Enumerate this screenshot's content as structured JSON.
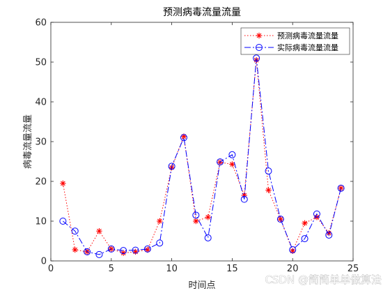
{
  "chart_data": {
    "type": "line",
    "title": "预测病毒流量流量",
    "xlabel": "时间点",
    "ylabel": "病毒流量流量",
    "xlim": [
      0,
      25
    ],
    "ylim": [
      0,
      60
    ],
    "xticks": [
      0,
      5,
      10,
      15,
      20,
      25
    ],
    "yticks": [
      0,
      10,
      20,
      30,
      40,
      50,
      60
    ],
    "grid": false,
    "legend_position": "top-right",
    "x": [
      1,
      2,
      3,
      4,
      5,
      6,
      7,
      8,
      9,
      10,
      11,
      12,
      13,
      14,
      15,
      16,
      17,
      18,
      19,
      20,
      21,
      22,
      23,
      24
    ],
    "series": [
      {
        "name": "预测病毒流量流量",
        "color": "#ff0000",
        "line_style": "dotted",
        "marker": "asterisk",
        "values": [
          19.5,
          2.8,
          2.3,
          7.5,
          3.0,
          2.0,
          2.3,
          2.8,
          10.0,
          23.5,
          31.3,
          10.0,
          11.0,
          24.8,
          24.3,
          16.5,
          50.5,
          17.8,
          10.5,
          2.5,
          9.5,
          11.0,
          7.0,
          18.3
        ]
      },
      {
        "name": "实际病毒流量流量",
        "color": "#0000ff",
        "line_style": "dashdot",
        "marker": "circle",
        "values": [
          10.0,
          7.5,
          2.3,
          1.6,
          3.0,
          2.6,
          2.7,
          3.0,
          4.5,
          23.8,
          31.0,
          11.5,
          5.8,
          24.9,
          26.7,
          15.5,
          51.0,
          22.6,
          10.5,
          2.8,
          5.6,
          11.8,
          6.5,
          18.3
        ]
      }
    ]
  },
  "watermark": "CSDN @简简单单做算法"
}
